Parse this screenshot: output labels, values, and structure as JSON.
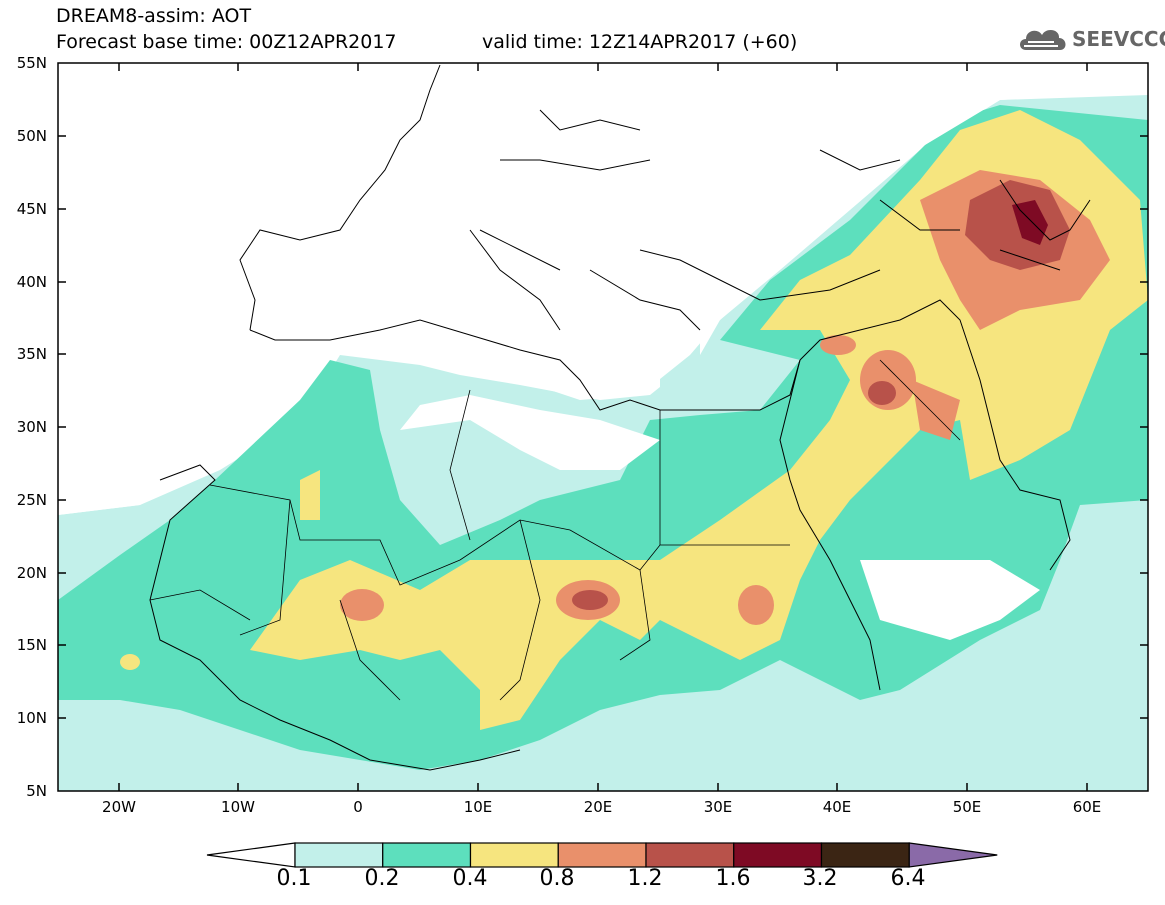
{
  "header": {
    "title": "DREAM8-assim: AOT",
    "base_time": "Forecast base time: 00Z12APR2017",
    "valid_time": "valid time: 12Z14APR2017 (+60)",
    "logo_text": "SEEVCCC",
    "logo_icon": "cloud-icon"
  },
  "map": {
    "lat_labels": [
      "55N",
      "50N",
      "45N",
      "40N",
      "35N",
      "30N",
      "25N",
      "20N",
      "15N",
      "10N",
      "5N"
    ],
    "lon_labels": [
      "20W",
      "10W",
      "0",
      "10E",
      "20E",
      "30E",
      "40E",
      "50E",
      "60E"
    ],
    "lat_range": [
      5,
      55
    ],
    "lon_range": [
      -25,
      65
    ]
  },
  "colorbar": {
    "labels": [
      "0.1",
      "0.2",
      "0.4",
      "0.8",
      "1.2",
      "1.6",
      "3.2",
      "6.4"
    ],
    "colors": [
      "#c2f0ea",
      "#5ddfbd",
      "#f6e57f",
      "#e9906b",
      "#b8524a",
      "#7e0a24",
      "#3b2514",
      "#8a6aa8"
    ]
  }
}
